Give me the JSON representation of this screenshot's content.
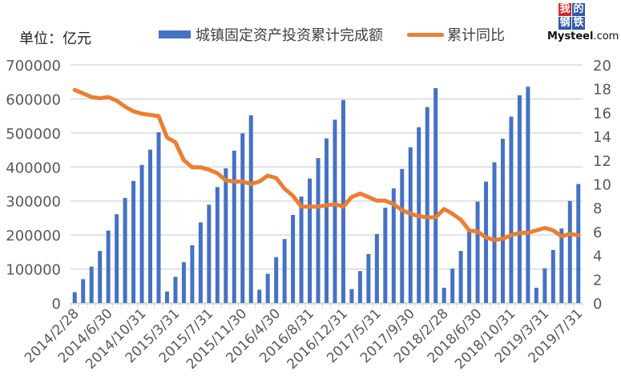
{
  "header": {
    "unit_label": "单位：亿元",
    "legend": [
      {
        "label": "城镇固定资产投资累计完成额",
        "color": "#4472C4",
        "kind": "bar"
      },
      {
        "label": "累计同比",
        "color": "#ED7D31",
        "kind": "line"
      }
    ],
    "logo": {
      "cells": [
        "我",
        "的",
        "钢",
        "铁"
      ],
      "cell_colors": [
        "#D7282F",
        "#2E5AA7",
        "#2E5AA7",
        "#2E5AA7"
      ],
      "text_main": "Mysteel",
      "text_suffix": ".com"
    }
  },
  "chart_data": {
    "type": "bar+line",
    "title": "",
    "xlabel": "",
    "ylabel": "单位：亿元",
    "y2label": "",
    "ylim": [
      0,
      700000
    ],
    "y2lim": [
      0,
      20
    ],
    "yticks": [
      "0",
      "100000",
      "200000",
      "300000",
      "400000",
      "500000",
      "600000",
      "700000"
    ],
    "y2ticks": [
      "0",
      "2",
      "4",
      "6",
      "8",
      "10",
      "12",
      "14",
      "16",
      "18",
      "20"
    ],
    "grid": true,
    "legend_position": "top",
    "xtick_labels": [
      "2014/2/28",
      "2014/6/30",
      "2014/10/31",
      "2015/3/31",
      "2015/7/31",
      "2015/11/30",
      "2016/4/30",
      "2016/8/31",
      "2016/12/31",
      "2017/5/31",
      "2017/9/30",
      "2018/2/28",
      "2018/6/30",
      "2018/10/31",
      "2019/3/31",
      "2019/7/31"
    ],
    "categories": [
      "2014/2/28",
      "2014/3/31",
      "2014/4/30",
      "2014/5/31",
      "2014/6/30",
      "2014/7/31",
      "2014/8/31",
      "2014/9/30",
      "2014/10/31",
      "2014/11/30",
      "2014/12/31",
      "2015/2/28",
      "2015/3/31",
      "2015/4/30",
      "2015/5/31",
      "2015/6/30",
      "2015/7/31",
      "2015/8/31",
      "2015/9/30",
      "2015/10/31",
      "2015/11/30",
      "2015/12/31",
      "2016/2/29",
      "2016/3/31",
      "2016/4/30",
      "2016/5/31",
      "2016/6/30",
      "2016/7/31",
      "2016/8/31",
      "2016/9/30",
      "2016/10/31",
      "2016/11/30",
      "2016/12/31",
      "2017/2/28",
      "2017/3/31",
      "2017/4/30",
      "2017/5/31",
      "2017/6/30",
      "2017/7/31",
      "2017/8/31",
      "2017/9/30",
      "2017/10/31",
      "2017/11/30",
      "2017/12/31",
      "2018/2/28",
      "2018/3/31",
      "2018/4/30",
      "2018/5/31",
      "2018/6/30",
      "2018/7/31",
      "2018/8/31",
      "2018/9/30",
      "2018/10/31",
      "2018/11/30",
      "2018/12/31",
      "2019/2/28",
      "2019/3/31",
      "2019/4/30",
      "2019/5/31",
      "2019/6/30",
      "2019/7/31"
    ],
    "series": [
      {
        "name": "城镇固定资产投资累计完成额",
        "type": "bar",
        "axis": "left",
        "color": "#4472C4",
        "values": [
          32000,
          70000,
          107000,
          153000,
          213000,
          261000,
          309000,
          359000,
          406000,
          451000,
          502000,
          34000,
          77000,
          120000,
          170000,
          237000,
          289000,
          341000,
          396000,
          448000,
          499000,
          552000,
          39000,
          86000,
          135000,
          188000,
          259000,
          313000,
          366000,
          426000,
          484000,
          539000,
          597000,
          41000,
          94000,
          144000,
          203000,
          280000,
          337000,
          394000,
          458000,
          517000,
          576000,
          632000,
          45000,
          101000,
          153000,
          214000,
          298000,
          357000,
          414000,
          483000,
          548000,
          611000,
          636000,
          45000,
          102000,
          156000,
          219000,
          300000,
          350000
        ]
      },
      {
        "name": "累计同比",
        "type": "line",
        "axis": "right",
        "color": "#ED7D31",
        "values": [
          17.9,
          17.6,
          17.3,
          17.2,
          17.3,
          17.0,
          16.5,
          16.1,
          15.9,
          15.8,
          15.7,
          13.9,
          13.5,
          12.0,
          11.4,
          11.4,
          11.2,
          10.9,
          10.3,
          10.2,
          10.2,
          10.0,
          10.2,
          10.7,
          10.5,
          9.6,
          9.0,
          8.1,
          8.1,
          8.1,
          8.2,
          8.3,
          8.1,
          8.9,
          9.2,
          8.9,
          8.6,
          8.6,
          8.3,
          7.8,
          7.5,
          7.3,
          7.2,
          7.2,
          7.9,
          7.5,
          7.0,
          6.1,
          6.0,
          5.5,
          5.3,
          5.4,
          5.7,
          5.9,
          5.9,
          6.1,
          6.3,
          6.1,
          5.6,
          5.8,
          5.7
        ]
      }
    ]
  }
}
